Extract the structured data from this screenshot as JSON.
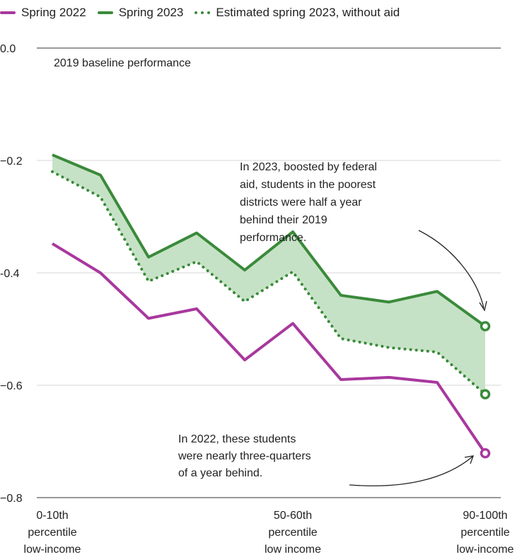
{
  "chart_data": {
    "type": "line",
    "title": "",
    "xlabel": "",
    "ylabel": "",
    "ylim": [
      -0.8,
      0.0
    ],
    "yticks": [
      0.0,
      -0.2,
      -0.4,
      -0.6,
      -0.8
    ],
    "ytick_labels": [
      "0.0",
      "−0.2",
      "-0.4",
      "−0.6",
      "−0.8"
    ],
    "x": [
      1,
      2,
      3,
      4,
      5,
      6,
      7,
      8,
      9,
      10
    ],
    "x_tick_labels": [
      {
        "x": 1,
        "lines": [
          "0-10th",
          "percentile",
          "low-income"
        ]
      },
      {
        "x": 6,
        "lines": [
          "50-60th",
          "percentile",
          "low income"
        ]
      },
      {
        "x": 10,
        "lines": [
          "90-100th",
          "percentile",
          "low-income"
        ]
      }
    ],
    "baseline_label": "2019 baseline performance",
    "series": [
      {
        "name": "Spring 2022",
        "color": "#a8389e",
        "style": "solid",
        "values": [
          -0.348,
          -0.4,
          -0.481,
          -0.464,
          -0.555,
          -0.49,
          -0.59,
          -0.586,
          -0.595,
          -0.721
        ]
      },
      {
        "name": "Spring 2023",
        "color": "#3a8a3a",
        "style": "solid",
        "values": [
          -0.19,
          -0.226,
          -0.372,
          -0.329,
          -0.395,
          -0.327,
          -0.44,
          -0.452,
          -0.433,
          -0.495
        ]
      },
      {
        "name": "Estimated spring 2023, without aid",
        "color": "#3a8a3a",
        "style": "dotted",
        "values": [
          -0.22,
          -0.265,
          -0.415,
          -0.38,
          -0.451,
          -0.398,
          -0.517,
          -0.533,
          -0.541,
          -0.616
        ]
      }
    ],
    "fill_between": {
      "upper": "Spring 2023",
      "lower": "Estimated spring 2023, without aid",
      "color": "#c6e2c6"
    },
    "grid": true,
    "legend": "top-left",
    "annotations": [
      {
        "lines": [
          "In 2023, boosted by federal",
          "aid, students in the poorest",
          "districts were half a year",
          "behind their 2019",
          "performance."
        ]
      },
      {
        "lines": [
          "In 2022, these students",
          "were nearly three-quarters",
          "of a year behind."
        ]
      }
    ]
  }
}
